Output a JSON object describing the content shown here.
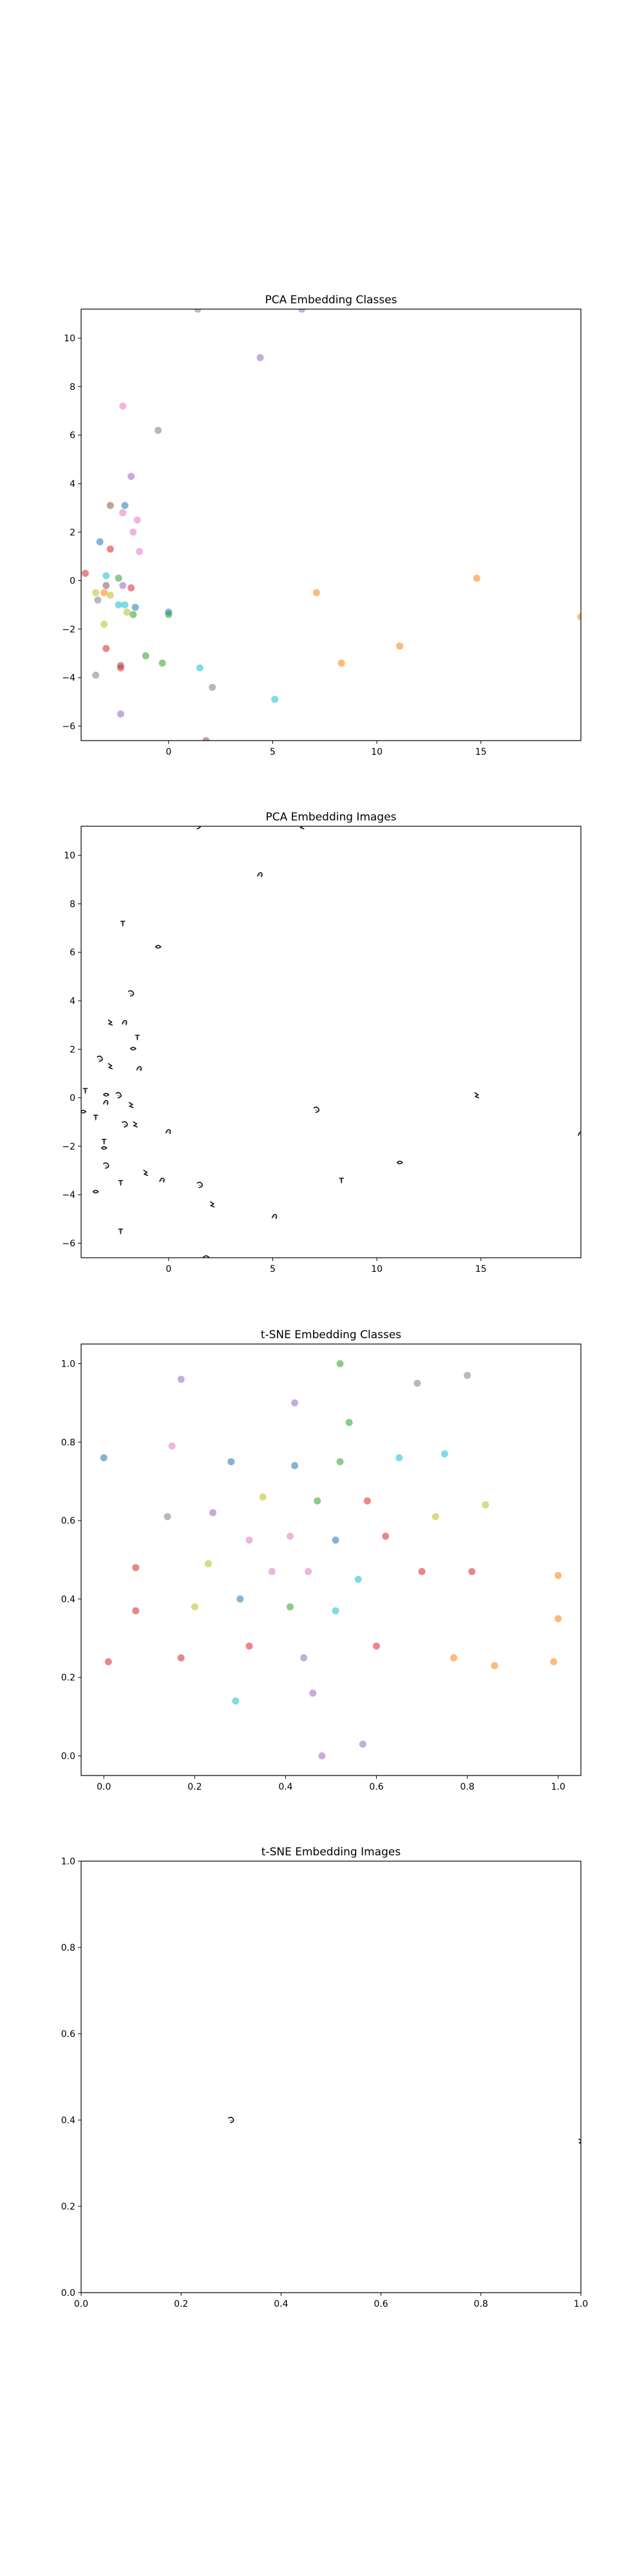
{
  "figure": {
    "background": "#ffffff"
  },
  "chart_data": [
    {
      "type": "scatter",
      "title": "PCA Embedding Classes",
      "xlabel": "",
      "ylabel": "",
      "xlim": [
        -4.2,
        19.8
      ],
      "ylim": [
        -6.6,
        11.2
      ],
      "xticks": [
        0,
        5,
        10,
        15
      ],
      "yticks": [
        -6,
        -4,
        -2,
        0,
        2,
        4,
        6,
        8,
        10
      ],
      "x_tick_labels": [
        "0",
        "5",
        "10",
        "15"
      ],
      "y_tick_labels": [
        "−6",
        "−4",
        "−2",
        "0",
        "2",
        "4",
        "6",
        "8",
        "10"
      ],
      "grid": false,
      "marker": "dot",
      "marker_alpha": 0.55,
      "points": [
        {
          "x": 1.4,
          "y": 11.2,
          "color": "#7f7f7f"
        },
        {
          "x": 6.4,
          "y": 11.2,
          "color": "#9467bd"
        },
        {
          "x": 4.4,
          "y": 9.2,
          "color": "#9467bd"
        },
        {
          "x": -2.2,
          "y": 7.2,
          "color": "#e377c2"
        },
        {
          "x": -0.5,
          "y": 6.2,
          "color": "#7f7f7f"
        },
        {
          "x": -1.8,
          "y": 4.3,
          "color": "#9467bd"
        },
        {
          "x": -2.8,
          "y": 3.1,
          "color": "#8c564b"
        },
        {
          "x": -2.1,
          "y": 3.1,
          "color": "#1f77b4"
        },
        {
          "x": -2.2,
          "y": 2.8,
          "color": "#e377c2"
        },
        {
          "x": -1.5,
          "y": 2.5,
          "color": "#e377c2"
        },
        {
          "x": -1.7,
          "y": 2.0,
          "color": "#e377c2"
        },
        {
          "x": -3.3,
          "y": 1.6,
          "color": "#1f77b4"
        },
        {
          "x": -2.8,
          "y": 1.3,
          "color": "#d62728"
        },
        {
          "x": -1.4,
          "y": 1.2,
          "color": "#e377c2"
        },
        {
          "x": -4.0,
          "y": 0.3,
          "color": "#d62728"
        },
        {
          "x": -3.0,
          "y": 0.2,
          "color": "#17becf"
        },
        {
          "x": -2.4,
          "y": 0.1,
          "color": "#2ca02c"
        },
        {
          "x": -2.2,
          "y": -0.2,
          "color": "#9467bd"
        },
        {
          "x": -1.8,
          "y": -0.3,
          "color": "#d62728"
        },
        {
          "x": -3.0,
          "y": -0.2,
          "color": "#8c564b"
        },
        {
          "x": -3.5,
          "y": -0.5,
          "color": "#bcbd22"
        },
        {
          "x": -3.1,
          "y": -0.5,
          "color": "#ff7f0e"
        },
        {
          "x": -2.8,
          "y": -0.6,
          "color": "#bcbd22"
        },
        {
          "x": -3.4,
          "y": -0.8,
          "color": "#7f7f7f"
        },
        {
          "x": -2.4,
          "y": -1.0,
          "color": "#17becf"
        },
        {
          "x": -2.1,
          "y": -1.0,
          "color": "#17becf"
        },
        {
          "x": -1.6,
          "y": -1.1,
          "color": "#1f77b4"
        },
        {
          "x": -2.0,
          "y": -1.3,
          "color": "#bcbd22"
        },
        {
          "x": -1.7,
          "y": -1.4,
          "color": "#2ca02c"
        },
        {
          "x": 0.0,
          "y": -1.3,
          "color": "#1f77b4"
        },
        {
          "x": 0.0,
          "y": -1.4,
          "color": "#2ca02c"
        },
        {
          "x": -3.1,
          "y": -1.8,
          "color": "#bcbd22"
        },
        {
          "x": -3.0,
          "y": -2.8,
          "color": "#d62728"
        },
        {
          "x": -1.1,
          "y": -3.1,
          "color": "#2ca02c"
        },
        {
          "x": -0.3,
          "y": -3.4,
          "color": "#2ca02c"
        },
        {
          "x": -2.3,
          "y": -3.5,
          "color": "#8c564b"
        },
        {
          "x": -2.3,
          "y": -3.6,
          "color": "#d62728"
        },
        {
          "x": -3.5,
          "y": -3.9,
          "color": "#7f7f7f"
        },
        {
          "x": 1.5,
          "y": -3.6,
          "color": "#17becf"
        },
        {
          "x": 2.1,
          "y": -4.4,
          "color": "#7f7f7f"
        },
        {
          "x": 5.1,
          "y": -4.9,
          "color": "#17becf"
        },
        {
          "x": -2.3,
          "y": -5.5,
          "color": "#9467bd"
        },
        {
          "x": 1.8,
          "y": -6.6,
          "color": "#8c564b"
        },
        {
          "x": 7.1,
          "y": -0.5,
          "color": "#ff7f0e"
        },
        {
          "x": 14.8,
          "y": 0.1,
          "color": "#ff7f0e"
        },
        {
          "x": 19.8,
          "y": -1.5,
          "color": "#ff7f0e"
        },
        {
          "x": 8.3,
          "y": -3.4,
          "color": "#ff7f0e"
        },
        {
          "x": 11.1,
          "y": -2.7,
          "color": "#ff7f0e"
        }
      ]
    },
    {
      "type": "scatter",
      "title": "PCA Embedding Images",
      "xlabel": "",
      "ylabel": "",
      "xlim": [
        -4.2,
        19.8
      ],
      "ylim": [
        -6.6,
        11.2
      ],
      "xticks": [
        0,
        5,
        10,
        15
      ],
      "yticks": [
        -6,
        -4,
        -2,
        0,
        2,
        4,
        6,
        8,
        10
      ],
      "x_tick_labels": [
        "0",
        "5",
        "10",
        "15"
      ],
      "y_tick_labels": [
        "−6",
        "−4",
        "−2",
        "0",
        "2",
        "4",
        "6",
        "8",
        "10"
      ],
      "grid": false,
      "marker": "thumbnail",
      "points": [
        {
          "x": 1.4,
          "y": 11.2
        },
        {
          "x": 6.4,
          "y": 11.2
        },
        {
          "x": 4.4,
          "y": 9.2
        },
        {
          "x": -2.2,
          "y": 7.2
        },
        {
          "x": -0.5,
          "y": 6.2
        },
        {
          "x": -1.8,
          "y": 4.3
        },
        {
          "x": -2.8,
          "y": 3.1
        },
        {
          "x": -2.1,
          "y": 3.1
        },
        {
          "x": -1.5,
          "y": 2.5
        },
        {
          "x": -1.7,
          "y": 2.0
        },
        {
          "x": -3.3,
          "y": 1.6
        },
        {
          "x": -2.8,
          "y": 1.3
        },
        {
          "x": -1.4,
          "y": 1.2
        },
        {
          "x": -4.0,
          "y": 0.3
        },
        {
          "x": -3.0,
          "y": 0.1
        },
        {
          "x": -2.4,
          "y": 0.1
        },
        {
          "x": -1.8,
          "y": -0.3
        },
        {
          "x": -3.0,
          "y": -0.2
        },
        {
          "x": -3.5,
          "y": -0.8
        },
        {
          "x": -4.1,
          "y": -0.6
        },
        {
          "x": -2.1,
          "y": -1.1
        },
        {
          "x": -1.6,
          "y": -1.1
        },
        {
          "x": 0.0,
          "y": -1.4
        },
        {
          "x": -3.1,
          "y": -1.8
        },
        {
          "x": -3.1,
          "y": -2.1
        },
        {
          "x": -3.0,
          "y": -2.8
        },
        {
          "x": -1.1,
          "y": -3.1
        },
        {
          "x": -0.3,
          "y": -3.4
        },
        {
          "x": -2.3,
          "y": -3.5
        },
        {
          "x": -3.5,
          "y": -3.9
        },
        {
          "x": 1.5,
          "y": -3.6
        },
        {
          "x": 2.1,
          "y": -4.4
        },
        {
          "x": 5.1,
          "y": -4.9
        },
        {
          "x": -2.3,
          "y": -5.5
        },
        {
          "x": 1.8,
          "y": -6.6
        },
        {
          "x": 7.1,
          "y": -0.5
        },
        {
          "x": 14.8,
          "y": 0.1
        },
        {
          "x": 19.8,
          "y": -1.5
        },
        {
          "x": 8.3,
          "y": -3.4
        },
        {
          "x": 11.1,
          "y": -2.7
        }
      ]
    },
    {
      "type": "scatter",
      "title": "t-SNE Embedding Classes",
      "xlabel": "",
      "ylabel": "",
      "xlim": [
        -0.05,
        1.05
      ],
      "ylim": [
        -0.05,
        1.05
      ],
      "xticks": [
        0.0,
        0.2,
        0.4,
        0.6,
        0.8,
        1.0
      ],
      "yticks": [
        0.0,
        0.2,
        0.4,
        0.6,
        0.8,
        1.0
      ],
      "x_tick_labels": [
        "0.0",
        "0.2",
        "0.4",
        "0.6",
        "0.8",
        "1.0"
      ],
      "y_tick_labels": [
        "0.0",
        "0.2",
        "0.4",
        "0.6",
        "0.8",
        "1.0"
      ],
      "grid": false,
      "marker": "dot",
      "marker_alpha": 0.55,
      "points": [
        {
          "x": 0.0,
          "y": 0.76,
          "color": "#1f77b4"
        },
        {
          "x": 0.01,
          "y": 0.24,
          "color": "#d62728"
        },
        {
          "x": 0.07,
          "y": 0.48,
          "color": "#d62728"
        },
        {
          "x": 0.07,
          "y": 0.37,
          "color": "#d62728"
        },
        {
          "x": 0.14,
          "y": 0.61,
          "color": "#7f7f7f"
        },
        {
          "x": 0.15,
          "y": 0.79,
          "color": "#e377c2"
        },
        {
          "x": 0.17,
          "y": 0.96,
          "color": "#9467bd"
        },
        {
          "x": 0.17,
          "y": 0.25,
          "color": "#d62728"
        },
        {
          "x": 0.2,
          "y": 0.38,
          "color": "#bcbd22"
        },
        {
          "x": 0.23,
          "y": 0.49,
          "color": "#bcbd22"
        },
        {
          "x": 0.24,
          "y": 0.62,
          "color": "#9467bd"
        },
        {
          "x": 0.28,
          "y": 0.75,
          "color": "#1f77b4"
        },
        {
          "x": 0.29,
          "y": 0.14,
          "color": "#17becf"
        },
        {
          "x": 0.3,
          "y": 0.4,
          "color": "#1f77b4"
        },
        {
          "x": 0.32,
          "y": 0.55,
          "color": "#e377c2"
        },
        {
          "x": 0.32,
          "y": 0.28,
          "color": "#d62728"
        },
        {
          "x": 0.35,
          "y": 0.66,
          "color": "#bcbd22"
        },
        {
          "x": 0.37,
          "y": 0.47,
          "color": "#e377c2"
        },
        {
          "x": 0.41,
          "y": 0.56,
          "color": "#e377c2"
        },
        {
          "x": 0.41,
          "y": 0.38,
          "color": "#2ca02c"
        },
        {
          "x": 0.42,
          "y": 0.9,
          "color": "#9467bd"
        },
        {
          "x": 0.42,
          "y": 0.74,
          "color": "#1f77b4"
        },
        {
          "x": 0.44,
          "y": 0.25,
          "color": "#9467bd"
        },
        {
          "x": 0.45,
          "y": 0.47,
          "color": "#e377c2"
        },
        {
          "x": 0.46,
          "y": 0.16,
          "color": "#9467bd"
        },
        {
          "x": 0.47,
          "y": 0.65,
          "color": "#2ca02c"
        },
        {
          "x": 0.48,
          "y": 0.0,
          "color": "#9467bd"
        },
        {
          "x": 0.51,
          "y": 0.37,
          "color": "#17becf"
        },
        {
          "x": 0.51,
          "y": 0.55,
          "color": "#1f77b4"
        },
        {
          "x": 0.52,
          "y": 1.0,
          "color": "#2ca02c"
        },
        {
          "x": 0.52,
          "y": 0.75,
          "color": "#2ca02c"
        },
        {
          "x": 0.54,
          "y": 0.85,
          "color": "#2ca02c"
        },
        {
          "x": 0.56,
          "y": 0.45,
          "color": "#17becf"
        },
        {
          "x": 0.57,
          "y": 0.03,
          "color": "#9467bd"
        },
        {
          "x": 0.58,
          "y": 0.65,
          "color": "#d62728"
        },
        {
          "x": 0.6,
          "y": 0.28,
          "color": "#d62728"
        },
        {
          "x": 0.62,
          "y": 0.56,
          "color": "#d62728"
        },
        {
          "x": 0.65,
          "y": 0.76,
          "color": "#17becf"
        },
        {
          "x": 0.69,
          "y": 0.95,
          "color": "#7f7f7f"
        },
        {
          "x": 0.7,
          "y": 0.47,
          "color": "#d62728"
        },
        {
          "x": 0.73,
          "y": 0.61,
          "color": "#bcbd22"
        },
        {
          "x": 0.75,
          "y": 0.77,
          "color": "#17becf"
        },
        {
          "x": 0.77,
          "y": 0.25,
          "color": "#ff7f0e"
        },
        {
          "x": 0.8,
          "y": 0.97,
          "color": "#7f7f7f"
        },
        {
          "x": 0.81,
          "y": 0.47,
          "color": "#d62728"
        },
        {
          "x": 0.84,
          "y": 0.64,
          "color": "#bcbd22"
        },
        {
          "x": 0.86,
          "y": 0.23,
          "color": "#ff7f0e"
        },
        {
          "x": 1.0,
          "y": 0.46,
          "color": "#ff7f0e"
        },
        {
          "x": 1.0,
          "y": 0.35,
          "color": "#ff7f0e"
        },
        {
          "x": 0.99,
          "y": 0.24,
          "color": "#ff7f0e"
        }
      ]
    },
    {
      "type": "scatter",
      "title": "t-SNE Embedding Images",
      "xlabel": "",
      "ylabel": "",
      "xlim": [
        0.0,
        1.0
      ],
      "ylim": [
        0.0,
        1.0
      ],
      "xticks": [
        0.0,
        0.2,
        0.4,
        0.6,
        0.8,
        1.0
      ],
      "yticks": [
        0.0,
        0.2,
        0.4,
        0.6,
        0.8,
        1.0
      ],
      "x_tick_labels": [
        "0.0",
        "0.2",
        "0.4",
        "0.6",
        "0.8",
        "1.0"
      ],
      "y_tick_labels": [
        "0.0",
        "0.2",
        "0.4",
        "0.6",
        "0.8",
        "1.0"
      ],
      "grid": false,
      "marker": "thumbnail",
      "points": [
        {
          "x": 0.3,
          "y": 0.4
        },
        {
          "x": 1.0,
          "y": 0.35
        }
      ]
    }
  ]
}
